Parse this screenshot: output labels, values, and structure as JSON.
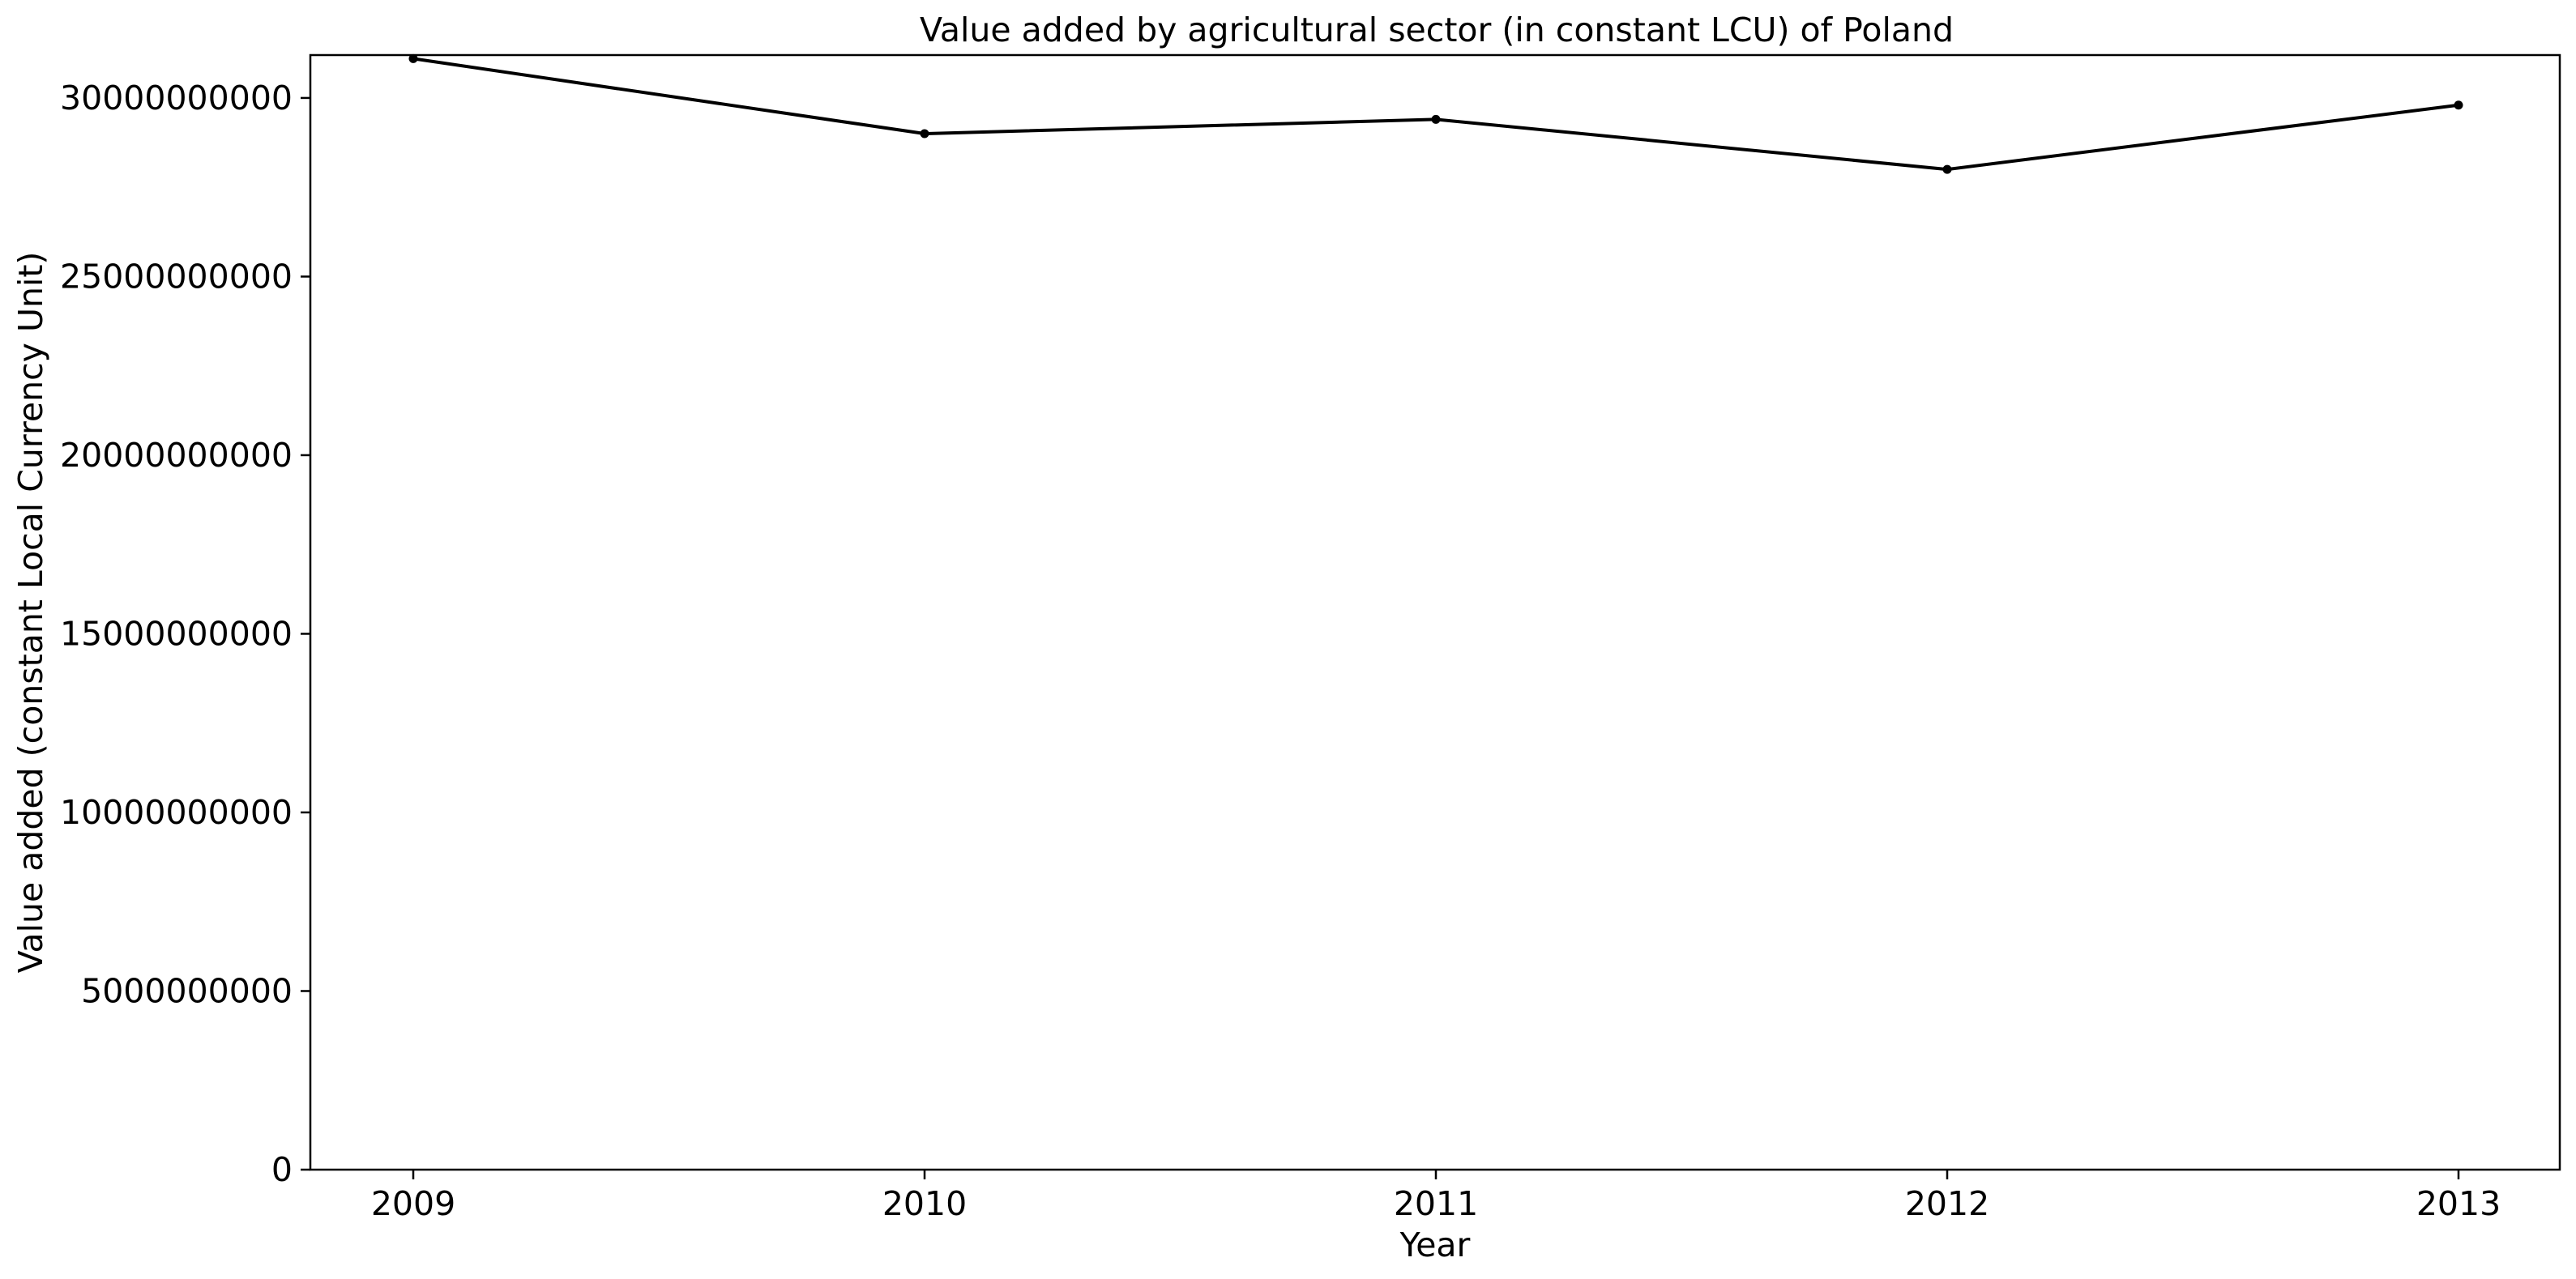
{
  "chart_data": {
    "type": "line",
    "title": "Value added by agricultural sector (in constant LCU) of Poland",
    "xlabel": "Year",
    "ylabel": "Value added (constant Local Currency Unit)",
    "categories": [
      "2009",
      "2010",
      "2011",
      "2012",
      "2013"
    ],
    "x": [
      2009,
      2010,
      2011,
      2012,
      2013
    ],
    "series": [
      {
        "values": [
          31100000000,
          29000000000,
          29400000000,
          28000000000,
          29800000000
        ]
      }
    ],
    "ylim": [
      0,
      31200000000
    ],
    "yticks": [
      0,
      5000000000,
      10000000000,
      15000000000,
      20000000000,
      25000000000,
      30000000000
    ],
    "ytick_labels": [
      "0",
      "5000000000",
      "10000000000",
      "15000000000",
      "20000000000",
      "25000000000",
      "30000000000"
    ],
    "xtick_labels": [
      "2009",
      "2010",
      "2011",
      "2012",
      "2013"
    ],
    "grid": false,
    "legend": "none",
    "line_color": "#000000",
    "marker": "dot"
  }
}
